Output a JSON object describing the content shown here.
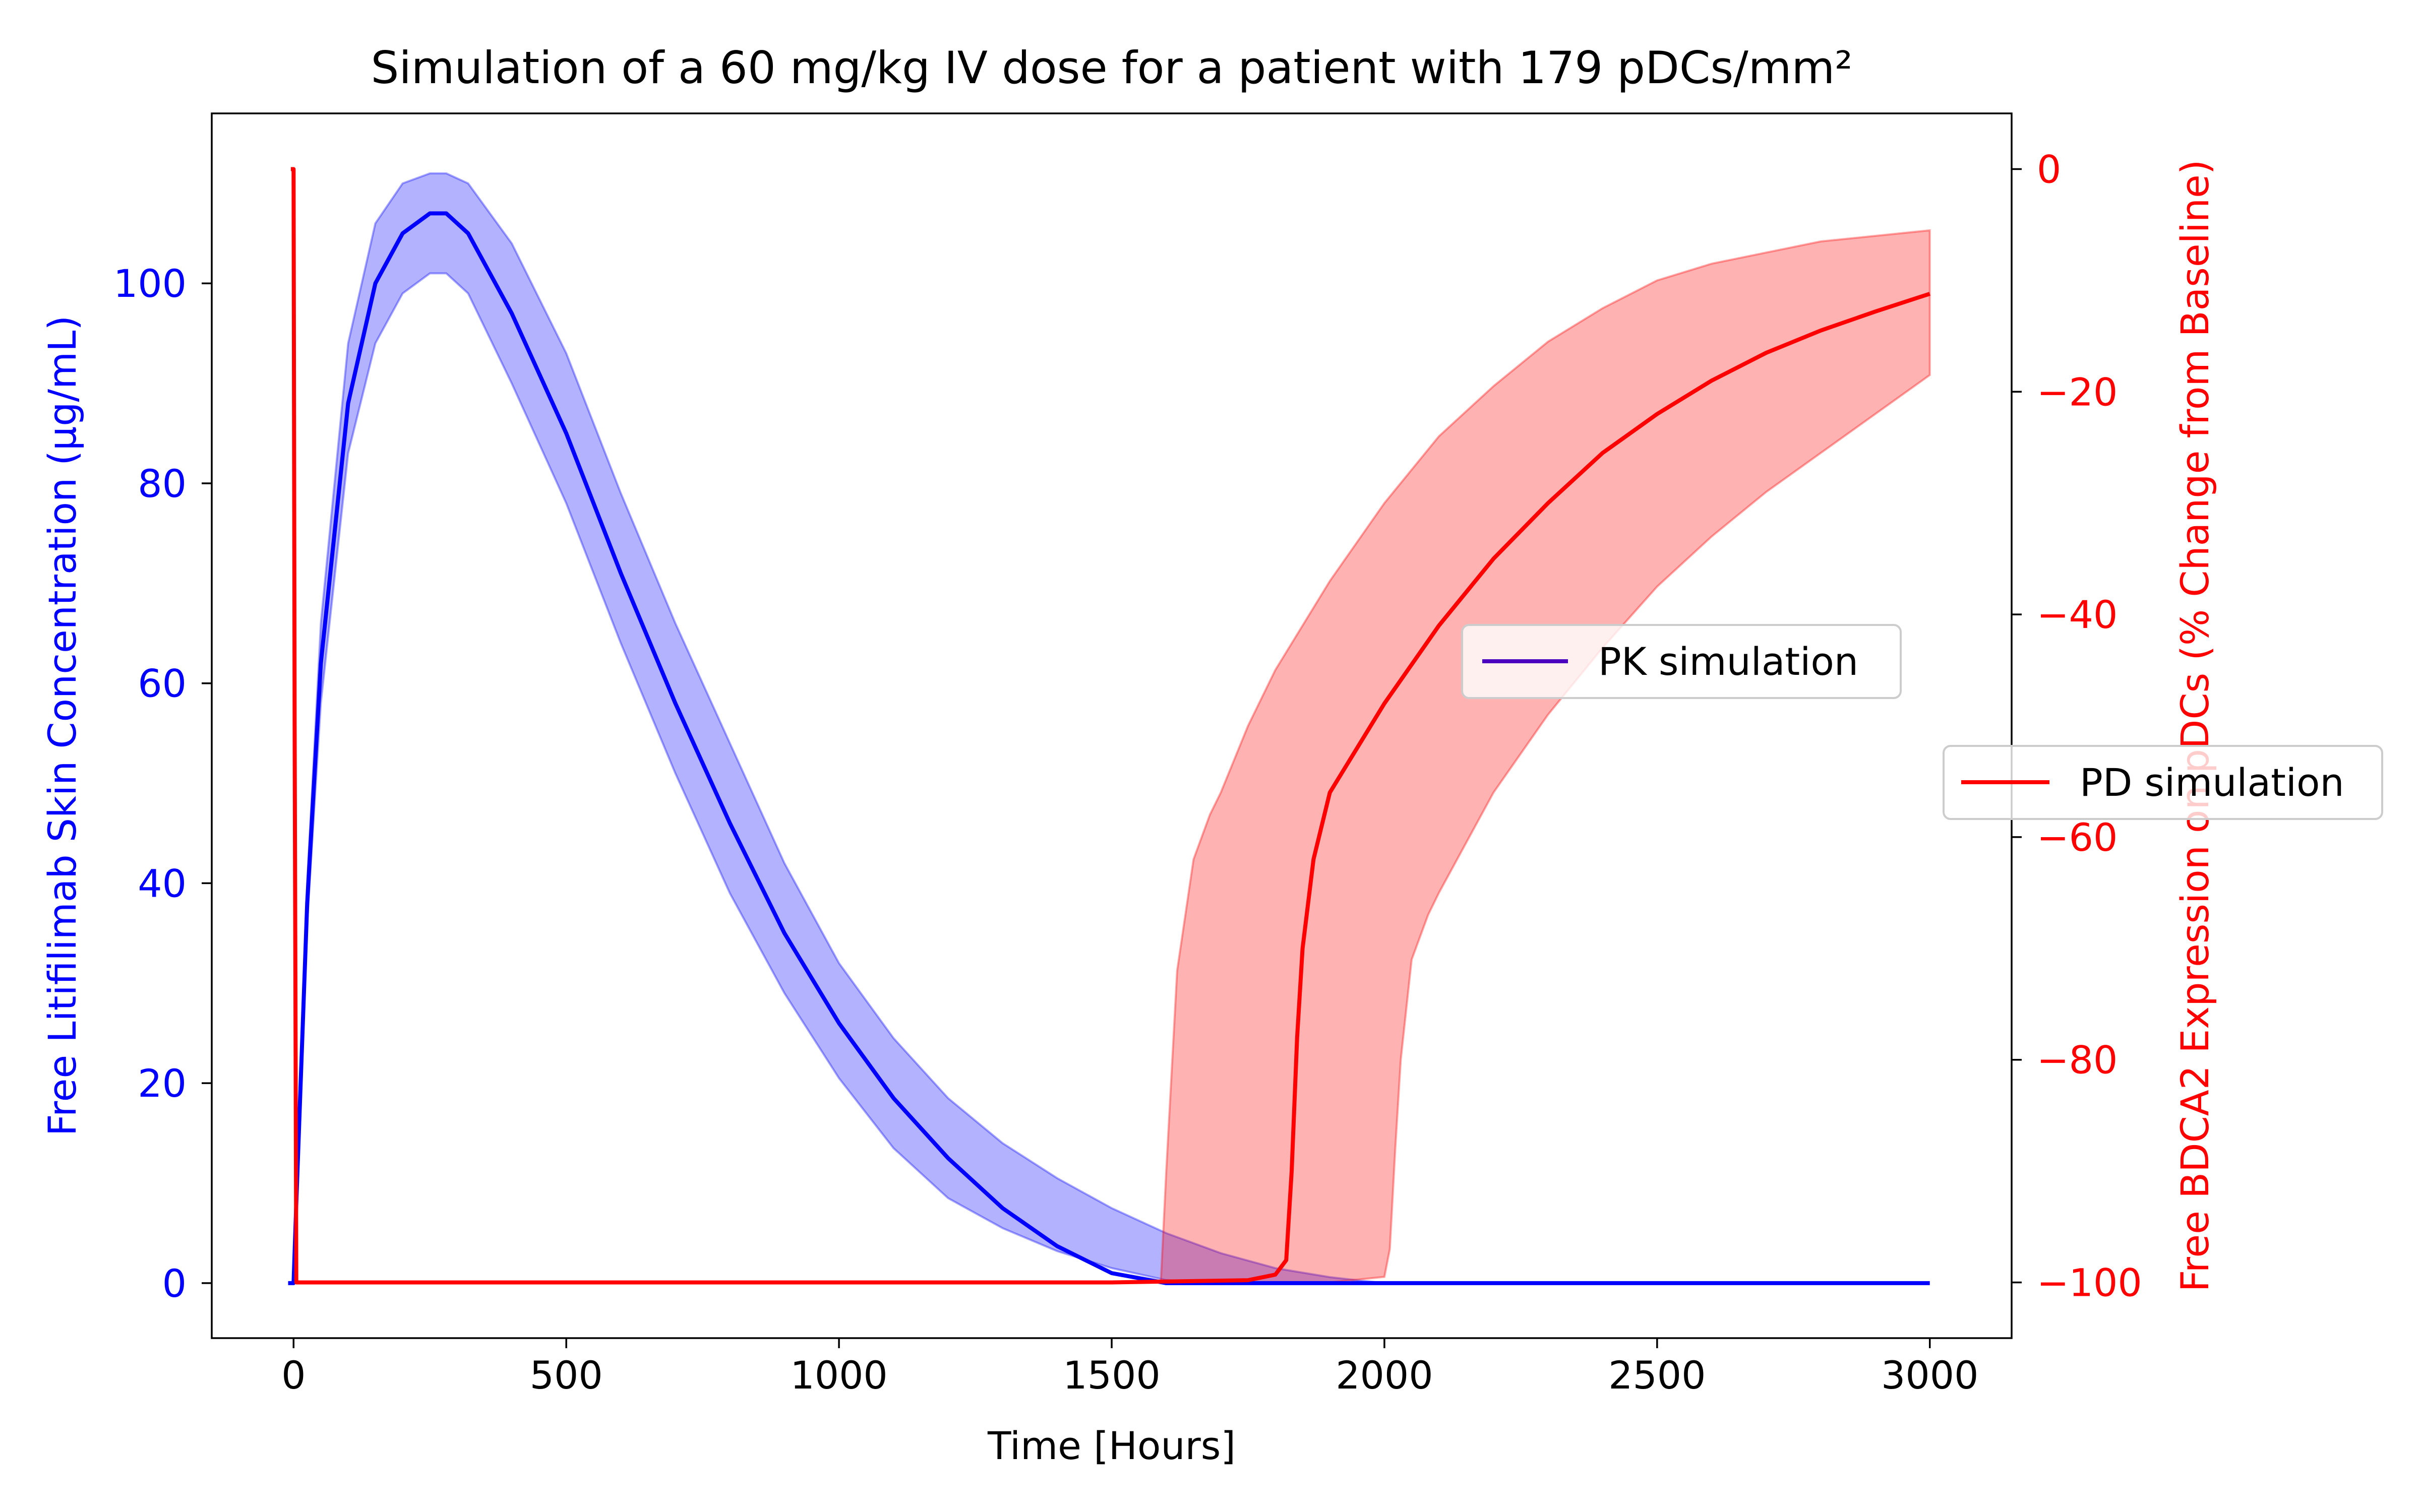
{
  "chart_data": {
    "type": "line",
    "title": "Simulation of a 60 mg/kg IV dose for a patient with 179 pDCs/mm²",
    "xlabel": "Time [Hours]",
    "ylabel_left": "Free Litifilimab Skin Concentration (μg/mL)",
    "ylabel_right": "Free BDCA2 Expression on pDCs (% Change from Baseline)",
    "xlim": [
      -150,
      3150
    ],
    "ylim_left": [
      -5.5,
      117
    ],
    "ylim_right": [
      -105,
      5
    ],
    "x_ticks": [
      0,
      500,
      1000,
      1500,
      2000,
      2500,
      3000
    ],
    "x_tick_labels": [
      "0",
      "500",
      "1000",
      "1500",
      "2000",
      "2500",
      "3000"
    ],
    "y_left_ticks": [
      0,
      20,
      40,
      60,
      80,
      100
    ],
    "y_left_tick_labels": [
      "0",
      "20",
      "40",
      "60",
      "80",
      "100"
    ],
    "y_right_ticks": [
      0,
      -20,
      -40,
      -60,
      -80,
      -100
    ],
    "y_right_tick_labels": [
      "0",
      "−20",
      "−40",
      "−60",
      "−80",
      "−100"
    ],
    "grid": false,
    "colors": {
      "pk": "#0000ff",
      "pk_band": "#0000ff",
      "pd": "#ff0000",
      "pd_band": "#ff0000",
      "pk_legend_line": "#4b00c0"
    },
    "series": [
      {
        "name": "PK simulation",
        "axis": "left",
        "x": [
          -10,
          0,
          5,
          25,
          50,
          100,
          150,
          200,
          250,
          280,
          320,
          400,
          500,
          600,
          700,
          800,
          900,
          1000,
          1100,
          1200,
          1300,
          1400,
          1500,
          1600,
          1700,
          1800,
          1830,
          1850,
          2000,
          2500,
          3000
        ],
        "y": [
          0,
          0,
          8,
          38,
          62,
          88,
          100,
          105,
          107,
          107,
          105,
          97,
          85,
          71,
          58,
          46,
          35,
          26,
          18.5,
          12.5,
          7.5,
          3.7,
          1.0,
          0,
          0,
          0,
          0,
          0,
          0,
          0,
          0
        ],
        "y_lower": [
          0,
          0,
          7.5,
          36,
          58,
          83,
          94,
          99,
          101,
          101,
          99,
          90,
          78,
          64,
          51,
          39,
          29,
          20.5,
          13,
          7.5,
          3.5,
          0.8,
          0,
          0,
          0,
          0,
          0,
          0,
          0,
          0,
          0
        ],
        "y_upper": [
          0,
          0,
          8.5,
          40,
          66,
          94,
          106,
          110,
          111,
          111,
          110,
          104,
          93,
          79,
          66,
          54,
          42,
          32,
          24,
          17,
          11.5,
          6.5,
          2.5,
          0.5,
          0,
          0,
          0,
          0,
          0,
          0,
          0
        ],
        "band_x": [
          0,
          5,
          25,
          50,
          100,
          150,
          200,
          250,
          280,
          320,
          400,
          500,
          600,
          700,
          800,
          900,
          1000,
          1100,
          1200,
          1300,
          1400,
          1500,
          1600,
          1700,
          1800,
          1900,
          2000
        ],
        "band_lower": [
          0,
          7.5,
          36,
          58,
          83,
          94,
          99,
          101,
          101,
          99,
          90,
          78,
          64,
          51,
          39,
          29,
          20.5,
          13.5,
          8.5,
          5.5,
          3.2,
          1.5,
          0.3,
          0,
          0,
          0,
          0
        ],
        "band_upper": [
          0,
          8.5,
          40,
          66,
          94,
          106,
          110,
          111,
          111,
          110,
          104,
          93,
          79,
          66,
          54,
          42,
          32,
          24.5,
          18.5,
          14,
          10.5,
          7.5,
          5,
          3,
          1.5,
          0.6,
          0
        ]
      },
      {
        "name": "PD simulation",
        "axis": "right",
        "x": [
          -5,
          0,
          2,
          5,
          500,
          1000,
          1500,
          1750,
          1800,
          1820,
          1830,
          1840,
          1850,
          1870,
          1900,
          2000,
          2100,
          2200,
          2300,
          2400,
          2500,
          2600,
          2700,
          2800,
          2900,
          3000
        ],
        "y": [
          0,
          0,
          -50,
          -100,
          -100,
          -100,
          -100,
          -99.8,
          -99.3,
          -98,
          -90,
          -78,
          -70,
          -62,
          -56,
          -48,
          -41,
          -35,
          -30,
          -25.5,
          -22,
          -19,
          -16.5,
          -14.5,
          -12.8,
          -11.2
        ],
        "band_x": [
          1590,
          1600,
          1620,
          1650,
          1680,
          1700,
          1750,
          1800,
          1900,
          2000,
          2100,
          2200,
          2300,
          2400,
          2500,
          2600,
          2700,
          2800,
          2900,
          3000
        ],
        "band_upper": [
          -100,
          -90,
          -72,
          -62,
          -58,
          -56,
          -50,
          -45,
          -37,
          -30,
          -24,
          -19.5,
          -15.5,
          -12.5,
          -10,
          -8.5,
          -7.5,
          -6.5,
          -6,
          -5.5
        ],
        "band_lower_x": [
          1590,
          1700,
          1800,
          1900,
          2000,
          2010,
          2020,
          2030,
          2050,
          2080,
          2100,
          2200,
          2300,
          2400,
          2500,
          2600,
          2700,
          2800,
          2900,
          3000
        ],
        "band_lower": [
          -100,
          -100,
          -100,
          -100,
          -99.5,
          -97,
          -88,
          -80,
          -71,
          -67,
          -65,
          -56,
          -49,
          -43,
          -37.5,
          -33,
          -29,
          -25.5,
          -22,
          -18.5
        ]
      }
    ],
    "legend_placement": "center-right"
  }
}
